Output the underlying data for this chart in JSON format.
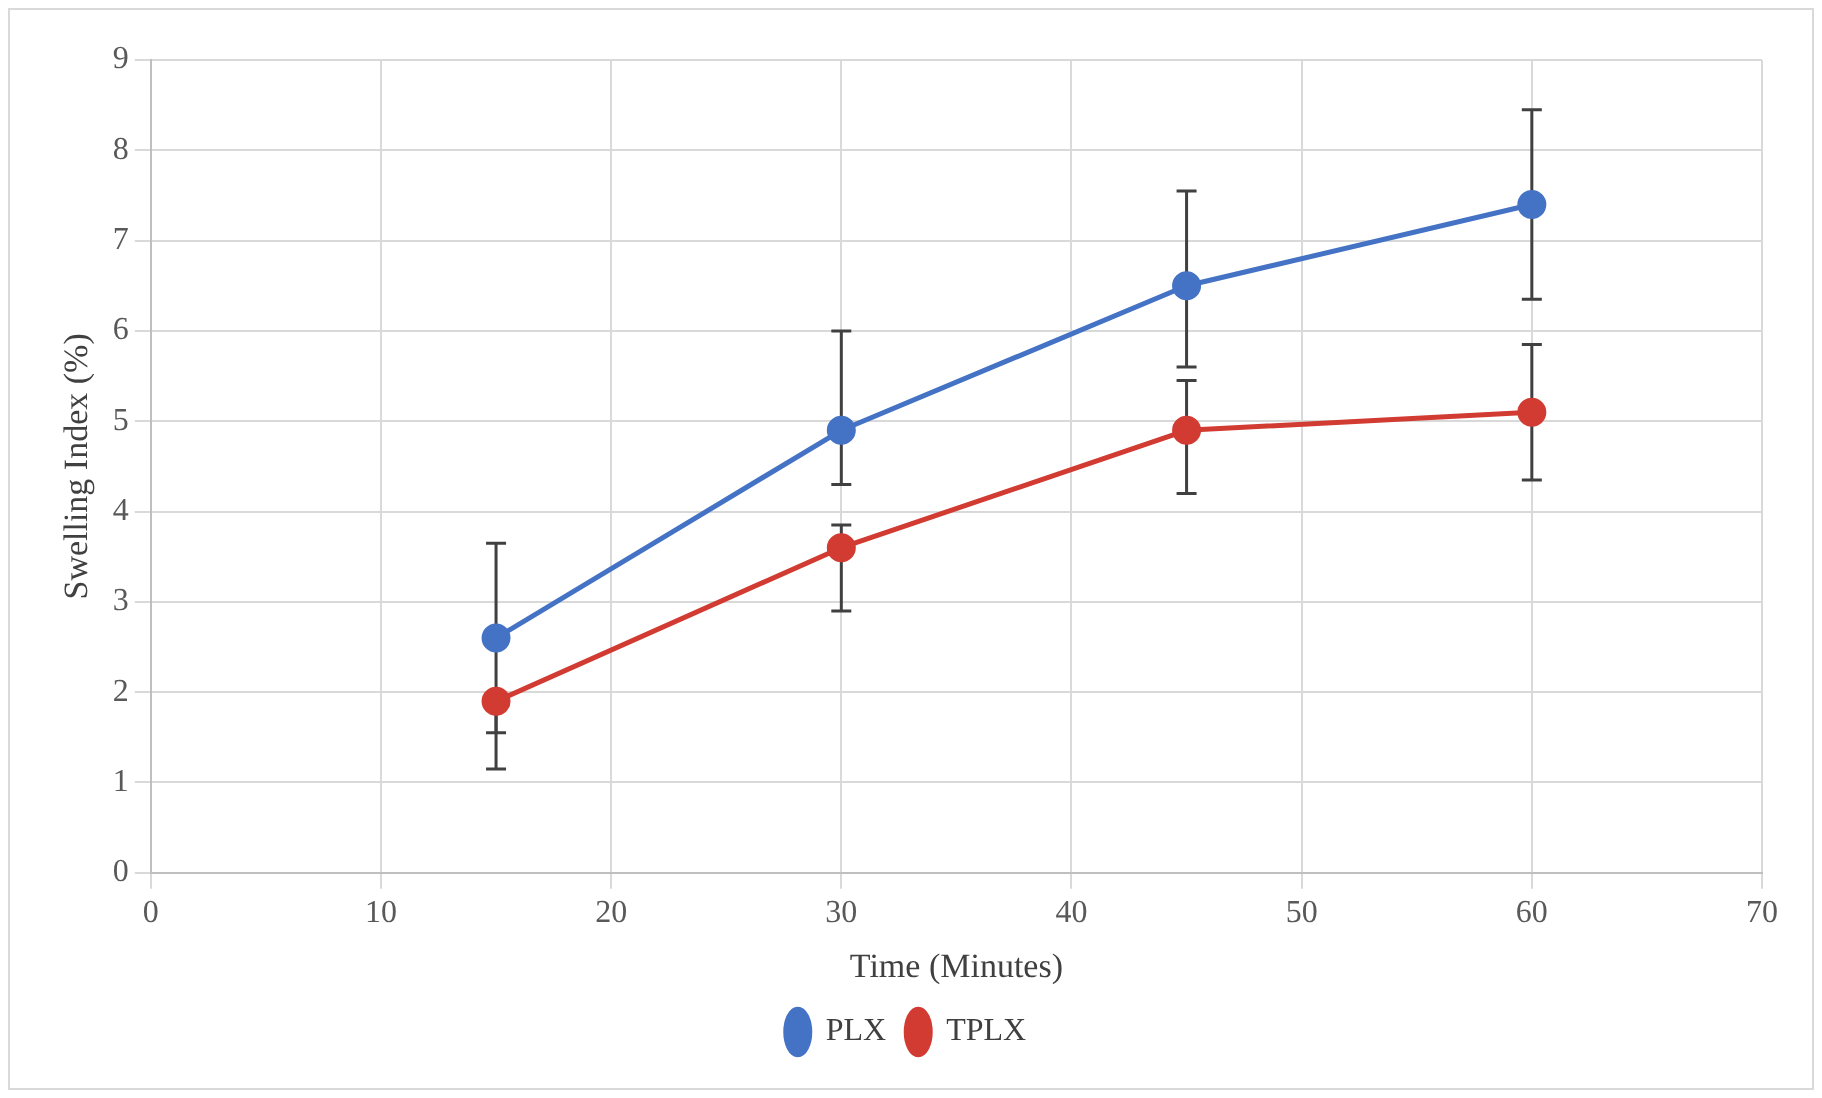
{
  "chart_data": {
    "type": "line",
    "xlabel": "Time (Minutes)",
    "ylabel": "Swelling Index (%)",
    "x": [
      15,
      30,
      45,
      60
    ],
    "series": [
      {
        "name": "PLX",
        "color": "#4472c4",
        "values": [
          2.6,
          4.9,
          6.5,
          7.4
        ],
        "errors": [
          [
            1.55,
            3.65
          ],
          [
            4.3,
            6.0
          ],
          [
            5.6,
            7.55
          ],
          [
            6.35,
            8.45
          ]
        ]
      },
      {
        "name": "TPLX",
        "color": "#d13b32",
        "values": [
          1.9,
          3.6,
          4.9,
          5.1
        ],
        "errors": [
          [
            1.15,
            1.9
          ],
          [
            2.9,
            3.85
          ],
          [
            4.2,
            5.45
          ],
          [
            4.35,
            5.85
          ]
        ]
      }
    ],
    "xlim": [
      0,
      70
    ],
    "xticks": [
      0,
      10,
      20,
      30,
      40,
      50,
      60,
      70
    ],
    "ylim": [
      0,
      9
    ],
    "yticks": [
      0,
      1,
      2,
      3,
      4,
      5,
      6,
      7,
      8,
      9
    ],
    "grid": true,
    "legend": "bottom",
    "marker": "circle",
    "line_style": "solid"
  }
}
